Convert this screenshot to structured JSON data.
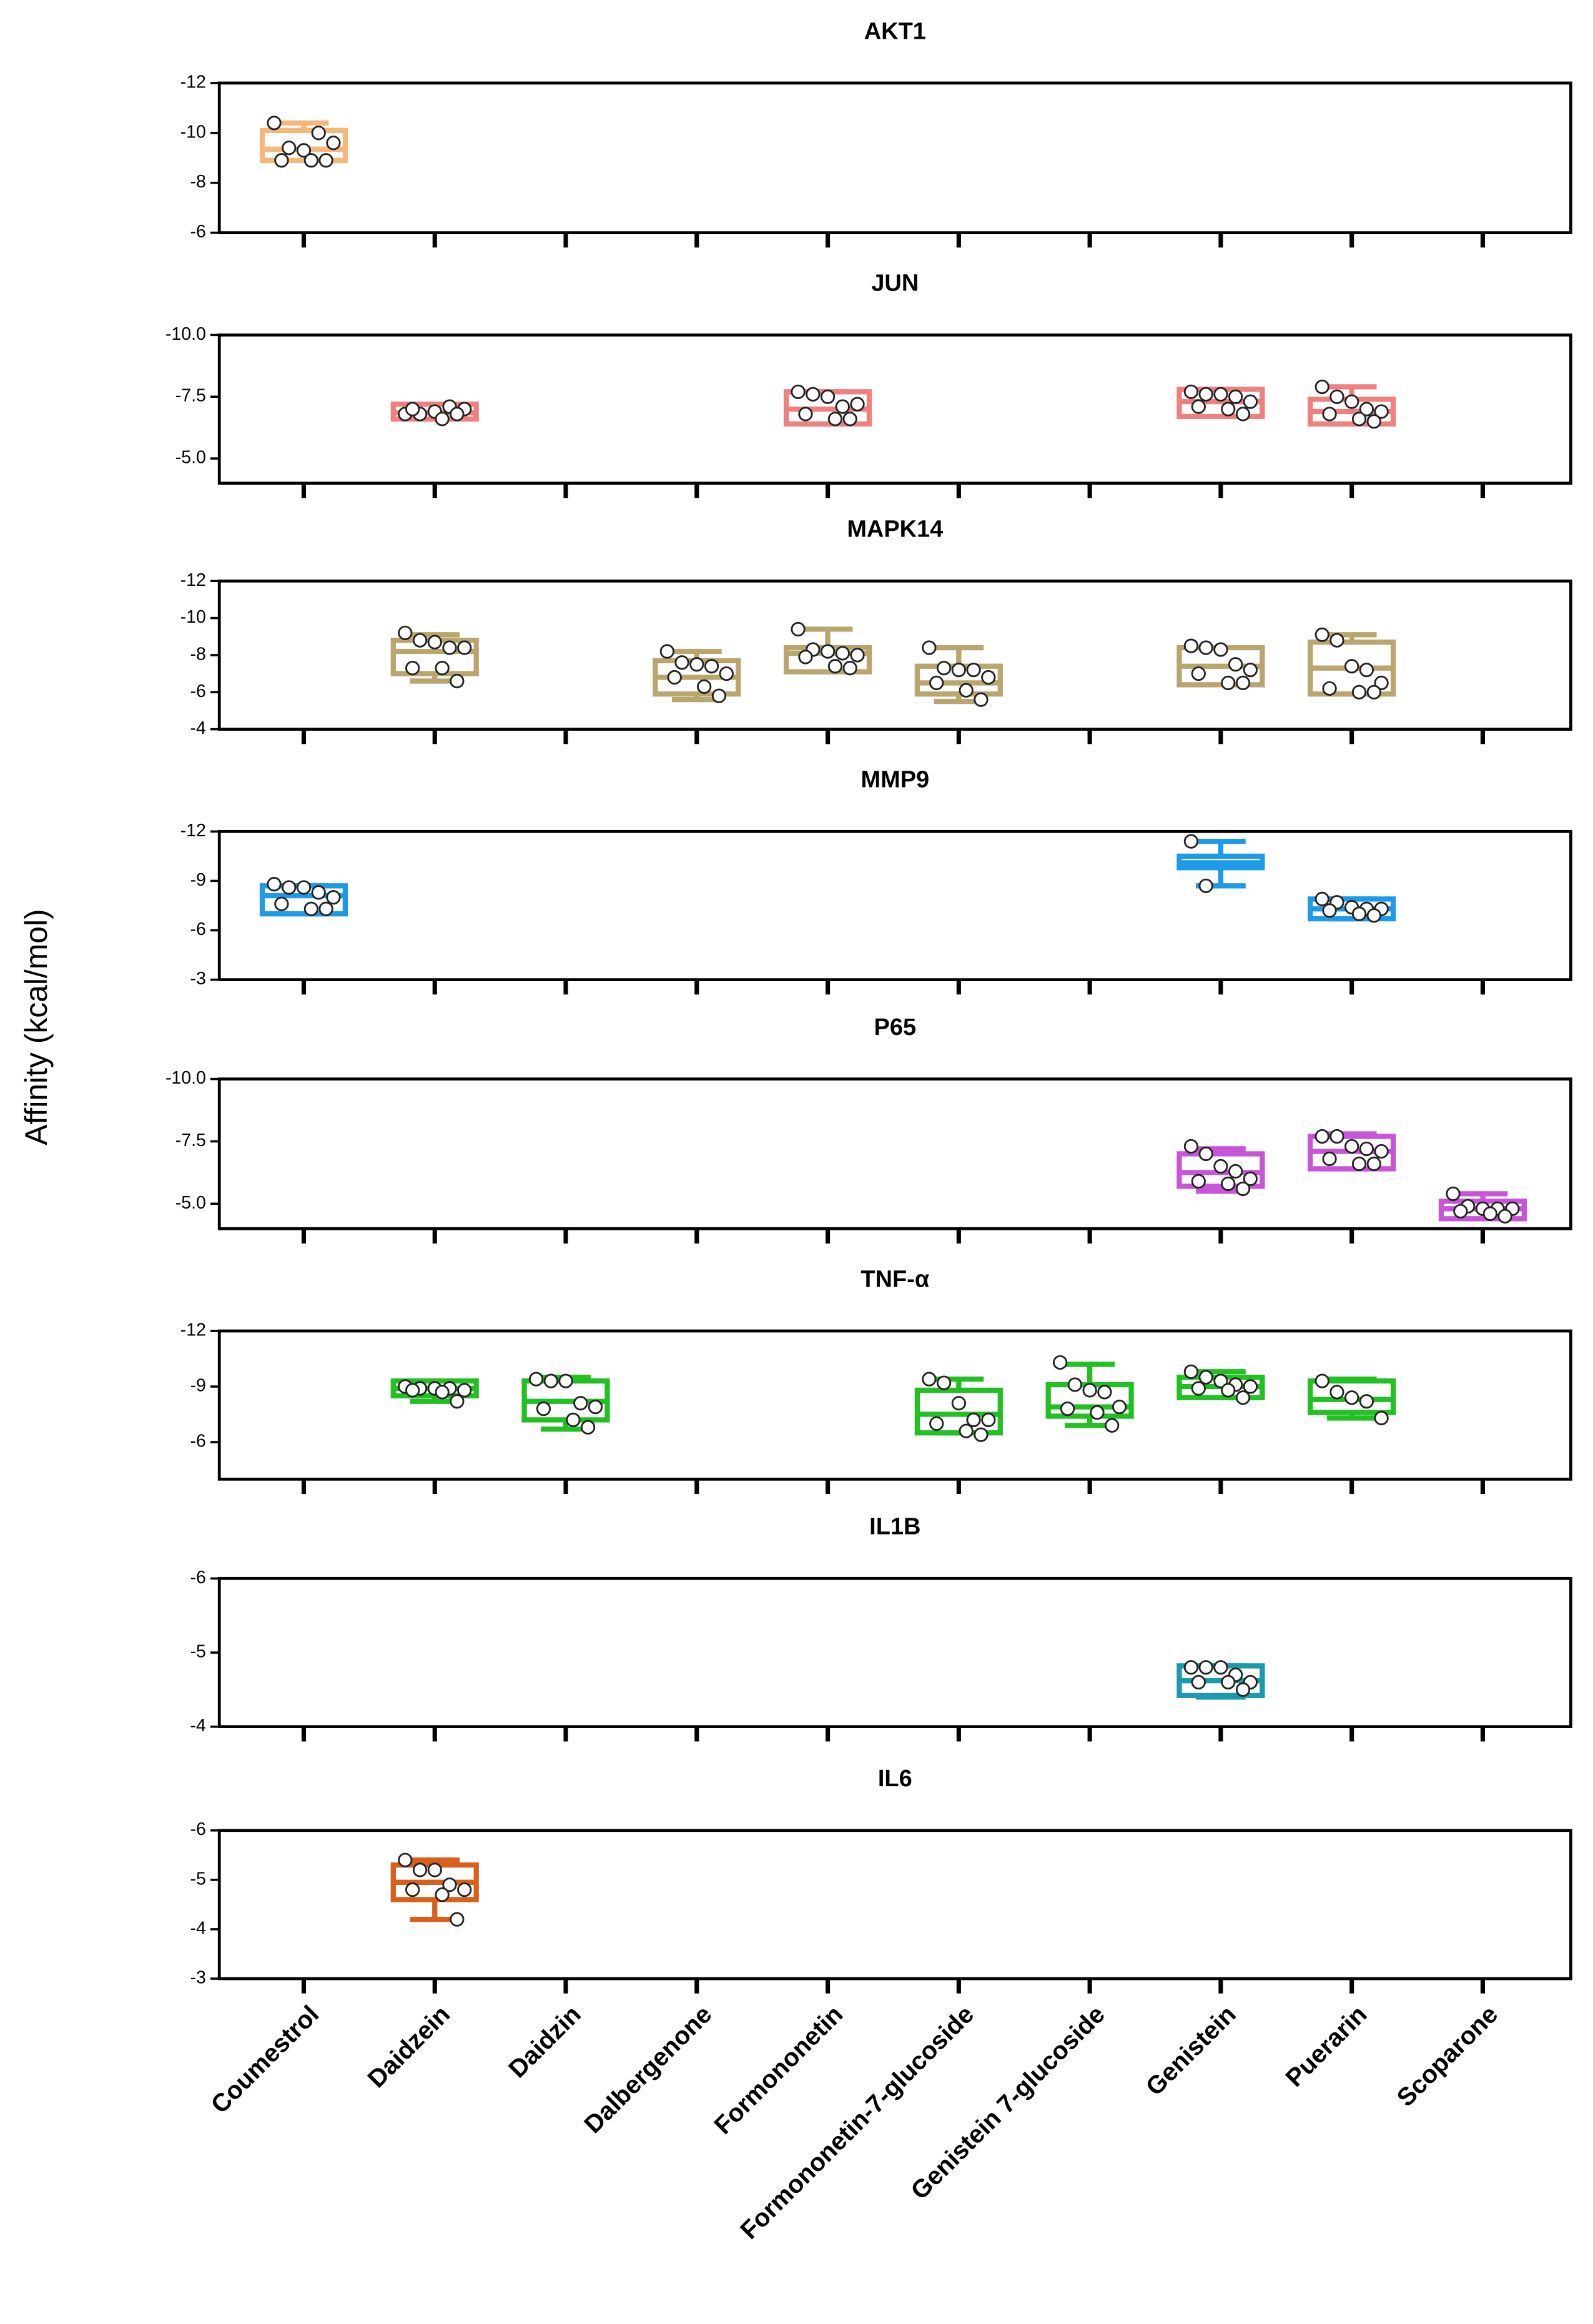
{
  "y_label": "Affinity (kcal/mol)",
  "categories": [
    "Coumestrol",
    "Daidzein",
    "Daidzin",
    "Dalbergenone",
    "Formononetin",
    "Formononetin-7-glucoside",
    "Genistein 7-glucoside",
    "Genistein",
    "Puerarin",
    "Scoparone"
  ],
  "chart_data": [
    {
      "type": "box",
      "title": "AKT1",
      "color": "#f5b87a",
      "ylim": [
        -6,
        -12
      ],
      "yticks": [
        -12,
        -10,
        -8,
        -6
      ],
      "values": [
        {
          "min": -10.4,
          "q1": -10.1,
          "median": -9.35,
          "q3": -8.9,
          "max": -8.9,
          "points": [
            -10.4,
            -9.4,
            -9.3,
            -10.0,
            -9.6,
            -8.9,
            -8.9,
            -8.9
          ]
        },
        null,
        null,
        null,
        null,
        null,
        null,
        null,
        null,
        null
      ]
    },
    {
      "type": "box",
      "title": "JUN",
      "color": "#f08080",
      "ylim": [
        -4,
        -10
      ],
      "yticks": [
        {
          "value": -10,
          "label": "-10.0"
        },
        -7.5,
        {
          "value": -5,
          "label": "-5.0"
        }
      ],
      "values": [
        null,
        {
          "min": -7.2,
          "q1": -7.2,
          "median": -6.85,
          "q3": -6.6,
          "max": -6.6,
          "points": [
            -6.8,
            -6.8,
            -6.9,
            -7.1,
            -7.0,
            -7.0,
            -6.6,
            -6.8
          ]
        },
        null,
        null,
        {
          "min": -7.7,
          "q1": -7.7,
          "median": -7.0,
          "q3": -6.4,
          "max": -6.4,
          "points": [
            -7.7,
            -7.6,
            -7.5,
            -7.1,
            -7.2,
            -6.8,
            -6.6,
            -6.6
          ]
        },
        null,
        null,
        {
          "min": -7.8,
          "q1": -7.8,
          "median": -7.3,
          "q3": -6.7,
          "max": -6.7,
          "points": [
            -7.7,
            -7.6,
            -7.6,
            -7.5,
            -7.3,
            -7.1,
            -7.0,
            -6.8
          ]
        },
        {
          "min": -7.9,
          "q1": -7.4,
          "median": -6.9,
          "q3": -6.4,
          "max": -6.4,
          "points": [
            -7.9,
            -7.5,
            -7.3,
            -7.0,
            -6.9,
            -6.8,
            -6.6,
            -6.5
          ]
        },
        null
      ]
    },
    {
      "type": "box",
      "title": "MAPK14",
      "color": "#b8a66e",
      "ylim": [
        -4,
        -12
      ],
      "yticks": [
        -12,
        -10,
        -8,
        -6,
        -4
      ],
      "values": [
        null,
        {
          "min": -9.1,
          "q1": -8.8,
          "median": -8.2,
          "q3": -7.0,
          "max": -6.6,
          "points": [
            -9.2,
            -8.8,
            -8.7,
            -8.4,
            -8.4,
            -7.3,
            -7.3,
            -6.6
          ]
        },
        null,
        {
          "min": -8.2,
          "q1": -7.7,
          "median": -6.8,
          "q3": -5.9,
          "max": -5.6,
          "points": [
            -8.2,
            -7.6,
            -7.5,
            -7.4,
            -7.0,
            -6.8,
            -6.3,
            -5.8
          ]
        },
        {
          "min": -9.4,
          "q1": -8.4,
          "median": -8.1,
          "q3": -7.1,
          "max": -7.1,
          "points": [
            -9.4,
            -8.3,
            -8.2,
            -8.1,
            -8.0,
            -7.9,
            -7.4,
            -7.3
          ]
        },
        {
          "min": -8.4,
          "q1": -7.4,
          "median": -6.5,
          "q3": -5.9,
          "max": -5.5,
          "points": [
            -8.4,
            -7.3,
            -7.2,
            -7.2,
            -6.8,
            -6.5,
            -6.1,
            -5.6
          ]
        },
        null,
        {
          "min": -8.4,
          "q1": -8.4,
          "median": -7.4,
          "q3": -6.4,
          "max": -6.4,
          "points": [
            -8.5,
            -8.4,
            -8.3,
            -7.5,
            -7.2,
            -7.0,
            -6.5,
            -6.5
          ]
        },
        {
          "min": -9.1,
          "q1": -8.7,
          "median": -7.3,
          "q3": -5.9,
          "max": -5.9,
          "points": [
            -9.1,
            -8.8,
            -7.4,
            -7.2,
            -6.5,
            -6.2,
            -6.0,
            -6.0
          ]
        },
        null
      ]
    },
    {
      "type": "box",
      "title": "MMP9",
      "color": "#1e9be8",
      "ylim": [
        -3,
        -12
      ],
      "yticks": [
        -12,
        -9,
        -6,
        -3
      ],
      "values": [
        {
          "min": -8.7,
          "q1": -8.7,
          "median": -8.1,
          "q3": -7.0,
          "max": -7.0,
          "points": [
            -8.8,
            -8.6,
            -8.6,
            -8.3,
            -8.0,
            -7.6,
            -7.3,
            -7.3
          ]
        },
        null,
        null,
        null,
        null,
        null,
        null,
        {
          "min": -11.4,
          "q1": -10.5,
          "median": -10.1,
          "q3": -9.8,
          "max": -8.7,
          "points": [
            -11.4,
            -8.7
          ]
        },
        {
          "min": -7.9,
          "q1": -7.9,
          "median": -7.3,
          "q3": -6.7,
          "max": -6.7,
          "points": [
            -7.9,
            -7.7,
            -7.4,
            -7.3,
            -7.3,
            -7.2,
            -7.0,
            -6.9
          ]
        },
        null
      ]
    },
    {
      "type": "box",
      "title": "P65",
      "color": "#c855d8",
      "ylim": [
        -4,
        -10
      ],
      "yticks": [
        {
          "value": -10,
          "label": "-10.0"
        },
        -7.5,
        {
          "value": -5,
          "label": "-5.0"
        }
      ],
      "values": [
        null,
        null,
        null,
        null,
        null,
        null,
        null,
        {
          "min": -7.2,
          "q1": -7.0,
          "median": -6.25,
          "q3": -5.7,
          "max": -5.5,
          "points": [
            -7.3,
            -7.0,
            -6.5,
            -6.3,
            -6.0,
            -5.9,
            -5.8,
            -5.6
          ]
        },
        {
          "min": -7.8,
          "q1": -7.7,
          "median": -7.1,
          "q3": -6.4,
          "max": -6.4,
          "points": [
            -7.7,
            -7.7,
            -7.3,
            -7.2,
            -7.1,
            -6.8,
            -6.6,
            -6.6
          ]
        },
        {
          "min": -5.4,
          "q1": -5.1,
          "median": -4.8,
          "q3": -4.4,
          "max": -4.4,
          "points": [
            -5.4,
            -4.9,
            -4.8,
            -4.8,
            -4.8,
            -4.7,
            -4.6,
            -4.5
          ]
        }
      ]
    },
    {
      "type": "box",
      "title": "TNF-α",
      "color": "#22c022",
      "ylim": [
        -4,
        -12
      ],
      "yticks": [
        -12,
        -9,
        -6
      ],
      "values": [
        null,
        {
          "min": -9.3,
          "q1": -9.3,
          "median": -8.9,
          "q3": -8.5,
          "max": -8.2,
          "points": [
            -9.0,
            -8.9,
            -8.9,
            -8.9,
            -8.8,
            -8.8,
            -8.7,
            -8.2
          ]
        },
        {
          "min": -9.5,
          "q1": -9.3,
          "median": -8.2,
          "q3": -7.2,
          "max": -6.7,
          "points": [
            -9.4,
            -9.3,
            -9.3,
            -8.1,
            -7.9,
            -7.8,
            -7.2,
            -6.8
          ]
        },
        null,
        null,
        {
          "min": -9.4,
          "q1": -8.8,
          "median": -7.5,
          "q3": -6.5,
          "max": -6.5,
          "points": [
            -9.4,
            -9.2,
            -8.1,
            -7.2,
            -7.2,
            -7.0,
            -6.6,
            -6.4
          ]
        },
        {
          "min": -10.2,
          "q1": -9.1,
          "median": -7.9,
          "q3": -7.4,
          "max": -6.9,
          "points": [
            -10.3,
            -9.1,
            -8.8,
            -8.7,
            -7.9,
            -7.8,
            -7.6,
            -6.9
          ]
        },
        {
          "min": -9.8,
          "q1": -9.5,
          "median": -9.0,
          "q3": -8.4,
          "max": -8.4,
          "points": [
            -9.8,
            -9.5,
            -9.3,
            -9.1,
            -9.0,
            -8.9,
            -8.8,
            -8.4
          ]
        },
        {
          "min": -9.4,
          "q1": -9.3,
          "median": -8.3,
          "q3": -7.6,
          "max": -7.3,
          "points": [
            -9.3,
            -8.7,
            -8.4,
            -8.2,
            -7.3
          ]
        },
        null
      ]
    },
    {
      "type": "box",
      "title": "IL1B",
      "color": "#1a9aaa",
      "ylim": [
        -4,
        -6
      ],
      "yticks": [
        -6,
        -5,
        -4
      ],
      "values": [
        null,
        null,
        null,
        null,
        null,
        null,
        null,
        {
          "min": -4.82,
          "q1": -4.82,
          "median": -4.62,
          "q3": -4.42,
          "max": -4.4,
          "points": [
            -4.8,
            -4.8,
            -4.8,
            -4.7,
            -4.6,
            -4.6,
            -4.6,
            -4.5
          ]
        },
        null,
        null
      ]
    },
    {
      "type": "box",
      "title": "IL6",
      "color": "#d9601a",
      "ylim": [
        -3,
        -6
      ],
      "yticks": [
        -6,
        -5,
        -4,
        -3
      ],
      "values": [
        null,
        {
          "min": -5.4,
          "q1": -5.3,
          "median": -4.95,
          "q3": -4.6,
          "max": -4.2,
          "points": [
            -5.4,
            -5.2,
            -5.2,
            -4.9,
            -4.8,
            -4.8,
            -4.7,
            -4.2
          ]
        },
        null,
        null,
        null,
        null,
        null,
        null,
        null,
        null
      ]
    }
  ]
}
